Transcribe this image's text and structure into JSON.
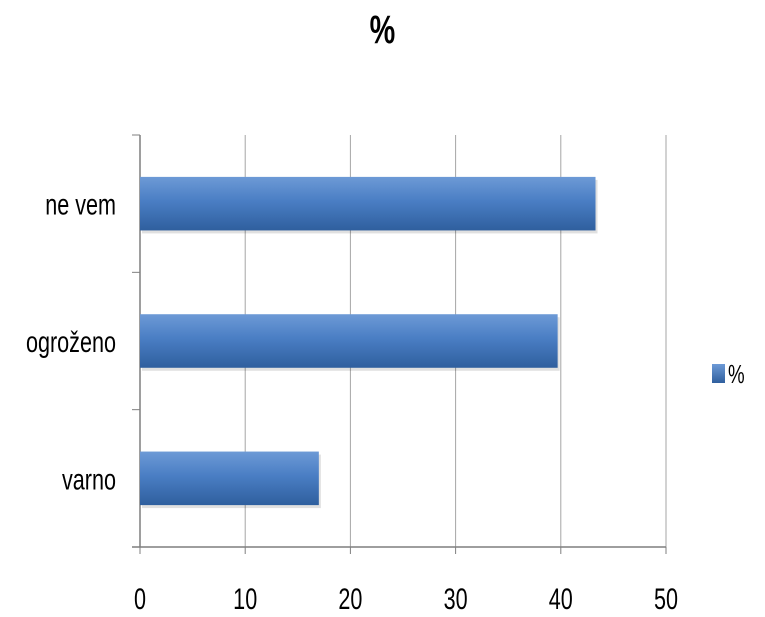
{
  "chart_data": {
    "type": "bar",
    "orientation": "horizontal",
    "title": "%",
    "categories": [
      "ne vem",
      "ogroženo",
      "varno"
    ],
    "series": [
      {
        "name": "%",
        "values": [
          43.3,
          39.7,
          17.0
        ]
      }
    ],
    "xlim": [
      0,
      50
    ],
    "x_ticks": [
      "0",
      "10",
      "20",
      "30",
      "40",
      "50"
    ],
    "grid": "vertical",
    "legend": "right",
    "colors": {
      "bar": "#4a7ec4",
      "bar_dark": "#2f5f9e",
      "bar_light": "#6d9ad6",
      "grid": "#a6a6a6",
      "axis": "#7f7f7f"
    }
  }
}
